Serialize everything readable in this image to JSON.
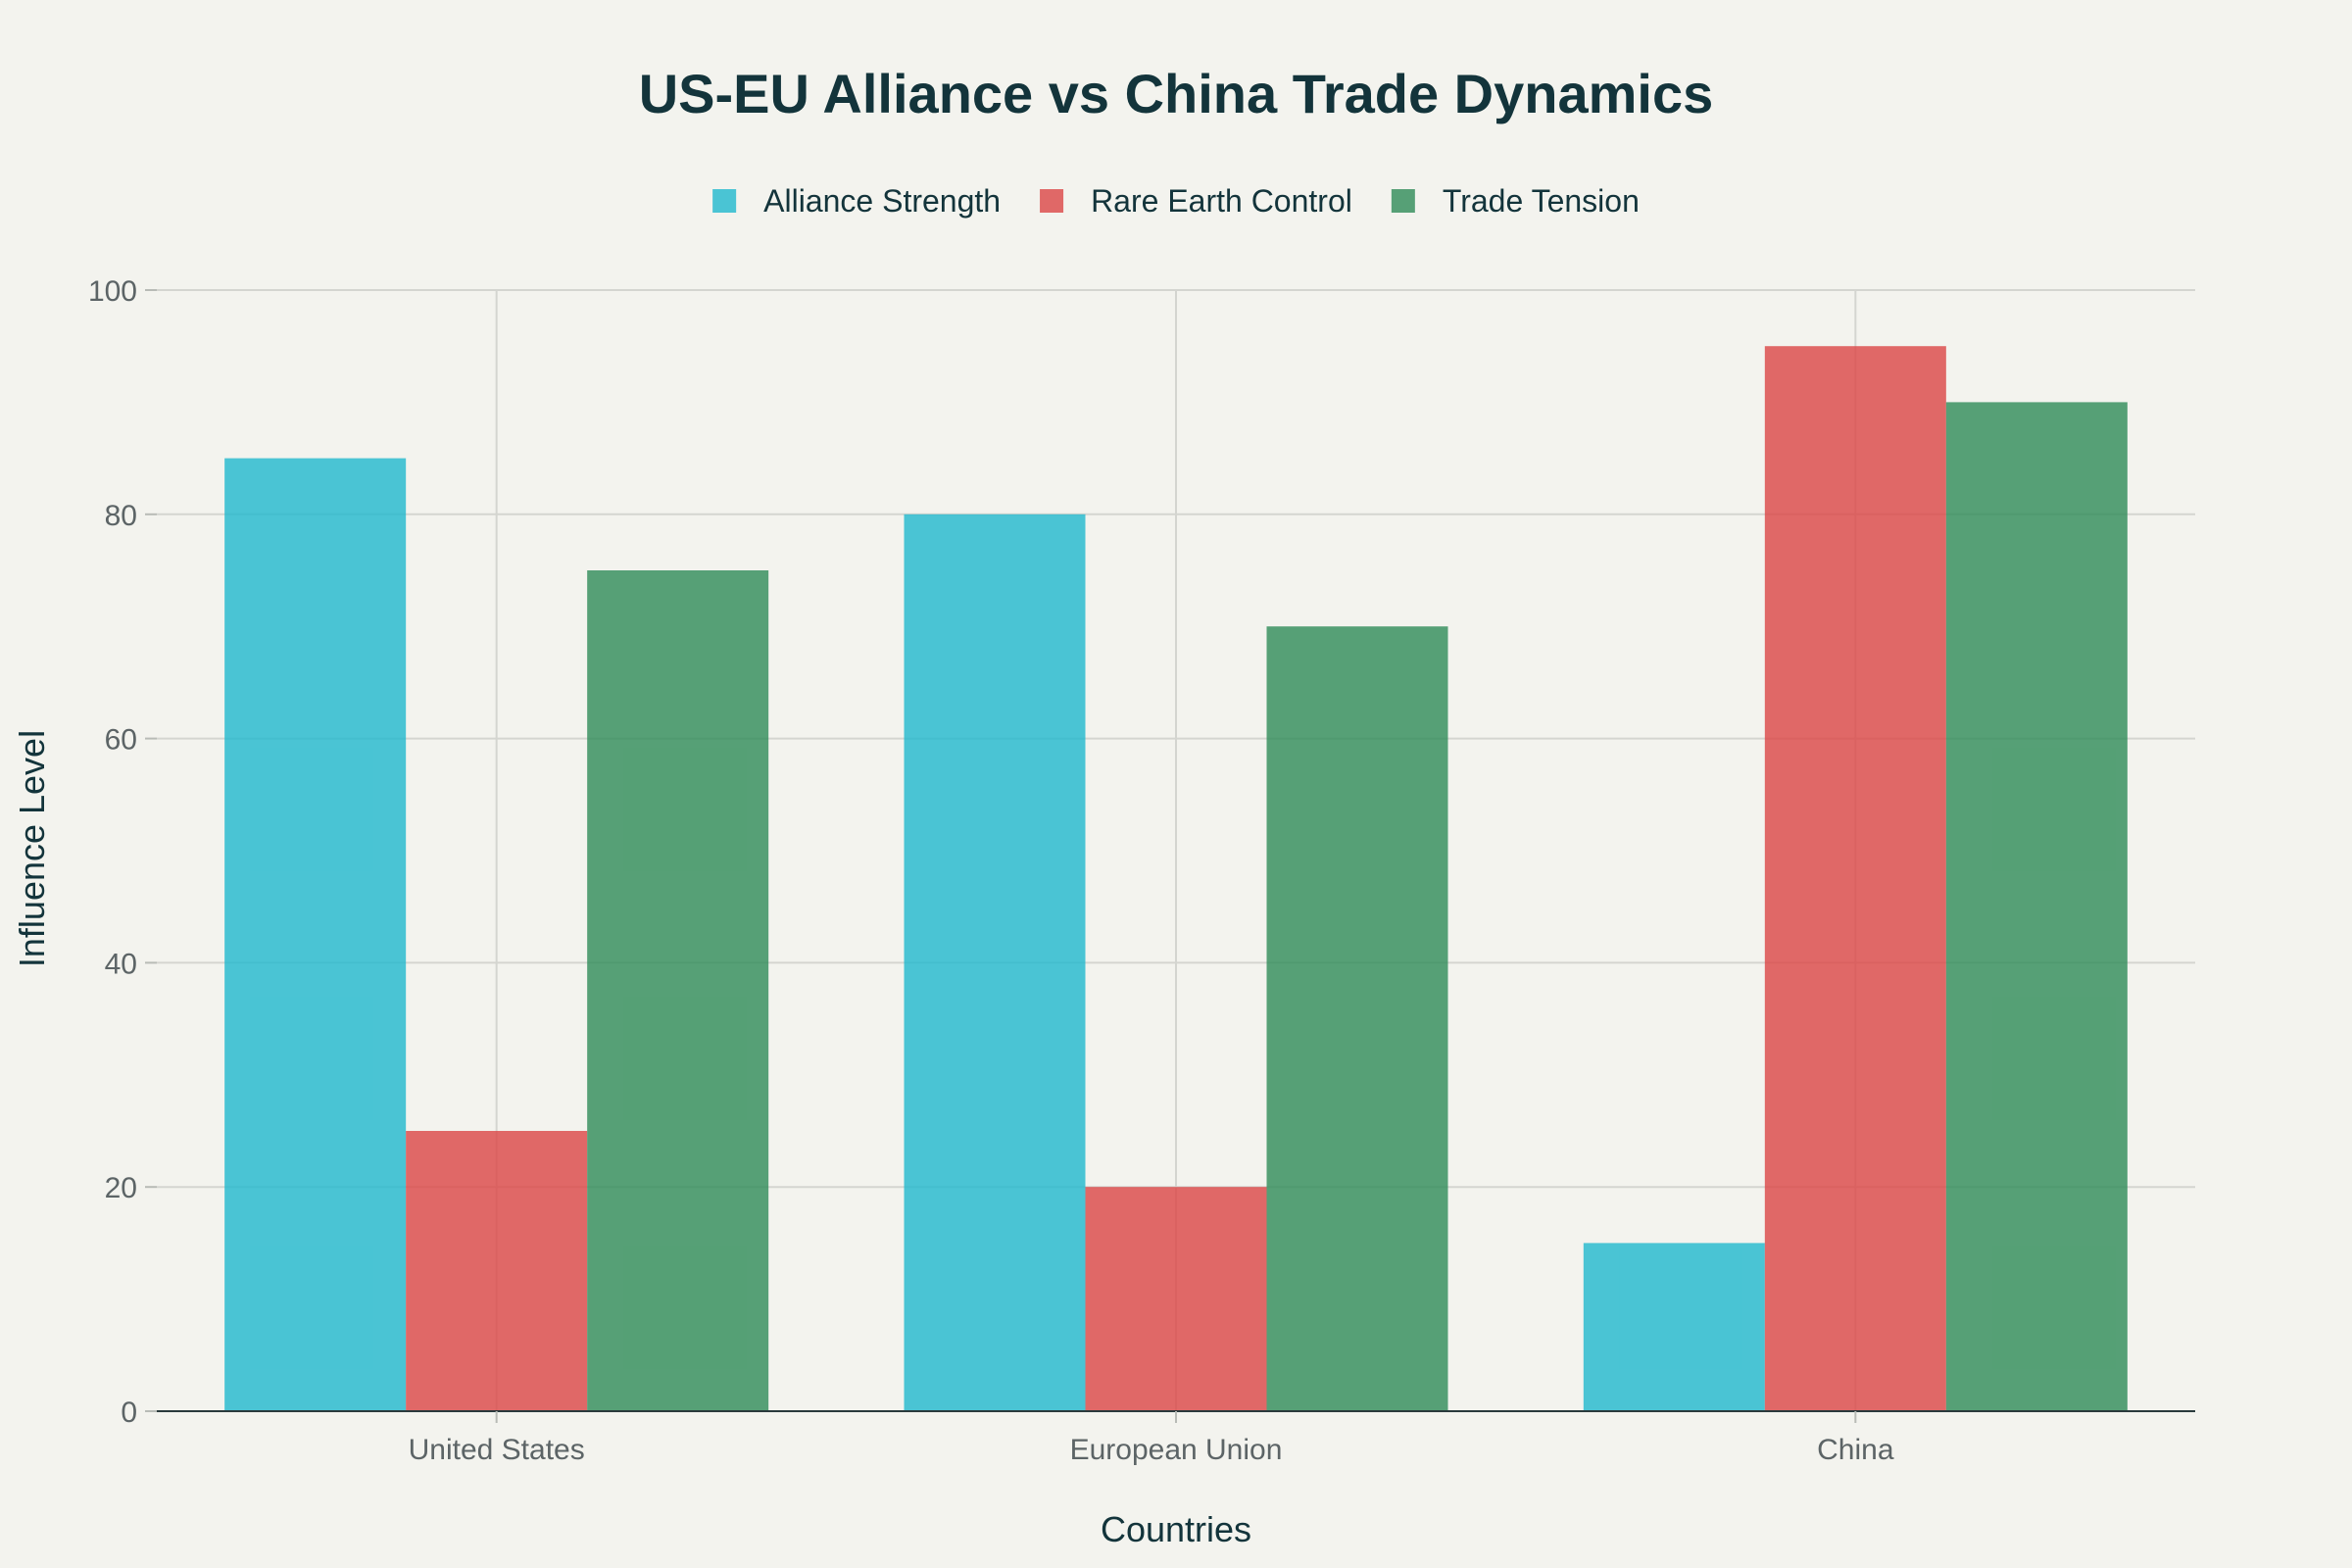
{
  "chart_data": {
    "type": "bar",
    "title": "US-EU Alliance vs China Trade Dynamics",
    "xlabel": "Countries",
    "ylabel": "Influence Level",
    "categories": [
      "United States",
      "European Union",
      "China"
    ],
    "series": [
      {
        "name": "Alliance Strength",
        "color": "#1fb8cd",
        "values": [
          85,
          80,
          15
        ]
      },
      {
        "name": "Rare Earth Control",
        "color": "#db4545",
        "values": [
          25,
          20,
          95
        ]
      },
      {
        "name": "Trade Tension",
        "color": "#2e8b57",
        "values": [
          75,
          70,
          90
        ]
      }
    ],
    "ylim": [
      0,
      100
    ],
    "yticks": [
      0,
      20,
      40,
      60,
      80,
      100
    ],
    "grid": true,
    "legend_position": "top-center"
  }
}
